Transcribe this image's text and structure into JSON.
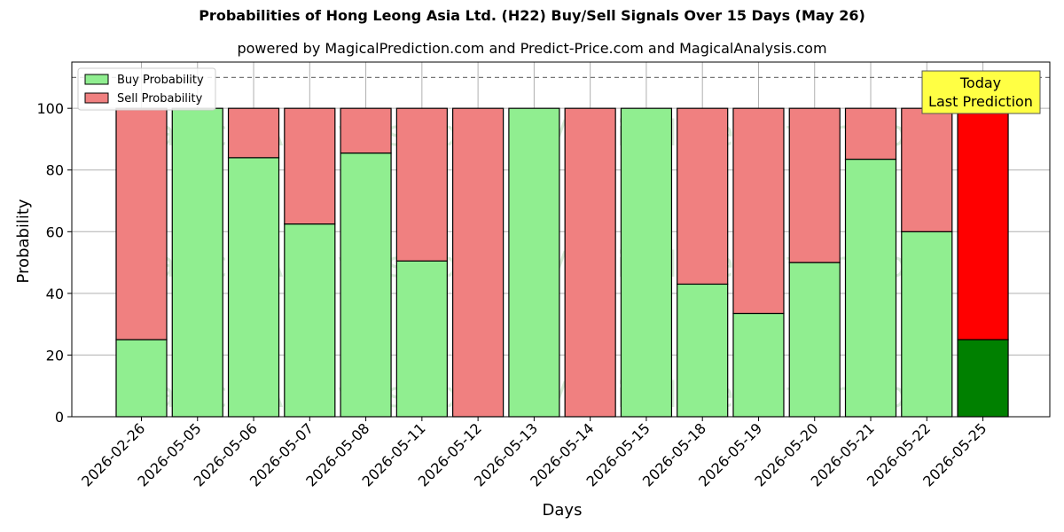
{
  "chart_data": {
    "type": "bar",
    "stacked": true,
    "title": "Probabilities of Hong Leong Asia Ltd. (H22) Buy/Sell Signals Over 15 Days (May 26)",
    "subtitle": "powered by MagicalPrediction.com and Predict-Price.com and MagicalAnalysis.com",
    "xlabel": "Days",
    "ylabel": "Probability",
    "ylim": [
      0,
      115
    ],
    "yticks": [
      0,
      20,
      40,
      60,
      80,
      100
    ],
    "grid": true,
    "legend_position": "top-left",
    "reference_line": 110,
    "categories": [
      "2026-02-26",
      "2026-05-05",
      "2026-05-06",
      "2026-05-07",
      "2026-05-08",
      "2026-05-11",
      "2026-05-12",
      "2026-05-13",
      "2026-05-14",
      "2026-05-15",
      "2026-05-18",
      "2026-05-19",
      "2026-05-20",
      "2026-05-21",
      "2026-05-22",
      "2026-05-25"
    ],
    "series": [
      {
        "name": "Buy Probability",
        "color": "#90ee90",
        "values": [
          25,
          100,
          84,
          62.5,
          85.5,
          50.5,
          0,
          100,
          0,
          100,
          43,
          33.5,
          50,
          83.5,
          60,
          25
        ]
      },
      {
        "name": "Sell Probability",
        "color": "#f08080",
        "values": [
          75,
          0,
          16,
          37.5,
          14.5,
          49.5,
          100,
          0,
          100,
          0,
          57,
          66.5,
          50,
          16.5,
          40,
          75
        ]
      }
    ],
    "highlight": {
      "index": 15,
      "buy_color": "#008000",
      "sell_color": "#ff0000"
    },
    "annotation": {
      "text_line1": "Today",
      "text_line2": "Last Prediction",
      "background": "#ffff44"
    },
    "watermarks": [
      "MagicalAnalysis.com",
      "MagicalPrediction.com"
    ]
  }
}
